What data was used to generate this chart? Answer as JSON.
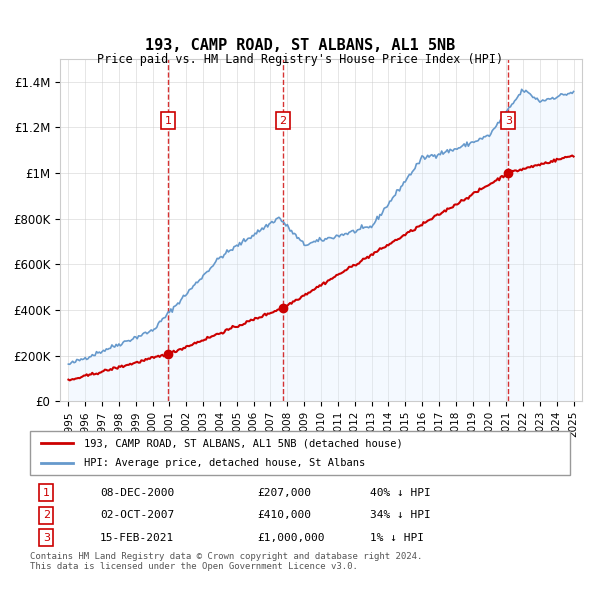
{
  "title": "193, CAMP ROAD, ST ALBANS, AL1 5NB",
  "subtitle": "Price paid vs. HM Land Registry's House Price Index (HPI)",
  "ylabel": "",
  "xlabel": "",
  "ylim": [
    0,
    1500000
  ],
  "yticks": [
    0,
    200000,
    400000,
    600000,
    800000,
    1000000,
    1200000,
    1400000
  ],
  "ytick_labels": [
    "£0",
    "£200K",
    "£400K",
    "£600K",
    "£800K",
    "£1M",
    "£1.2M",
    "£1.4M"
  ],
  "xlim_start": 1994.5,
  "xlim_end": 2025.5,
  "sale_dates": [
    2000.93,
    2007.75,
    2021.12
  ],
  "sale_prices": [
    207000,
    410000,
    1000000
  ],
  "sale_labels": [
    "1",
    "2",
    "3"
  ],
  "red_line_color": "#cc0000",
  "blue_line_color": "#6699cc",
  "blue_fill_color": "#ddeeff",
  "dashed_line_color": "#cc0000",
  "marker_box_color": "#cc0000",
  "legend_label_red": "193, CAMP ROAD, ST ALBANS, AL1 5NB (detached house)",
  "legend_label_blue": "HPI: Average price, detached house, St Albans",
  "table_rows": [
    {
      "num": "1",
      "date": "08-DEC-2000",
      "price": "£207,000",
      "hpi": "40% ↓ HPI"
    },
    {
      "num": "2",
      "date": "02-OCT-2007",
      "price": "£410,000",
      "hpi": "34% ↓ HPI"
    },
    {
      "num": "3",
      "date": "15-FEB-2021",
      "price": "£1,000,000",
      "hpi": "1% ↓ HPI"
    }
  ],
  "footnote": "Contains HM Land Registry data © Crown copyright and database right 2024.\nThis data is licensed under the Open Government Licence v3.0.",
  "background_color": "#ffffff",
  "plot_bg_color": "#ffffff",
  "grid_color": "#cccccc"
}
